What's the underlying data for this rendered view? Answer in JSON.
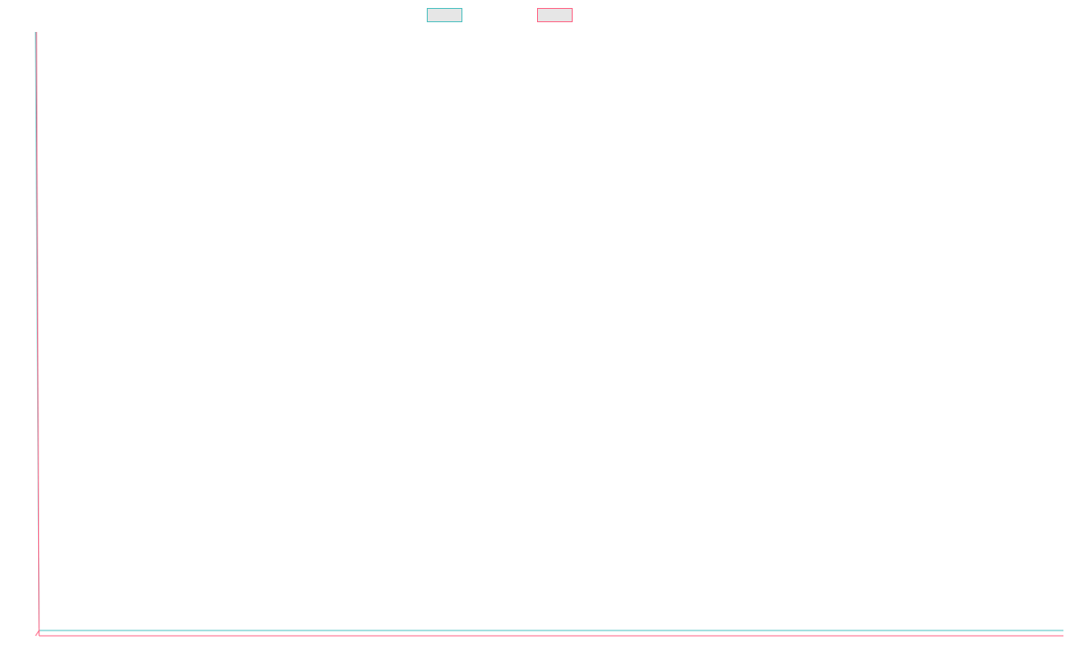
{
  "chart_data": {
    "type": "line",
    "title": "",
    "xlabel": "",
    "ylabel": "",
    "grid": false,
    "legend_placement": "top-center",
    "x": [],
    "series": [
      {
        "name": "",
        "color": "#4bc0c0",
        "values": []
      },
      {
        "name": "",
        "color": "#ff6384",
        "values": []
      }
    ]
  }
}
